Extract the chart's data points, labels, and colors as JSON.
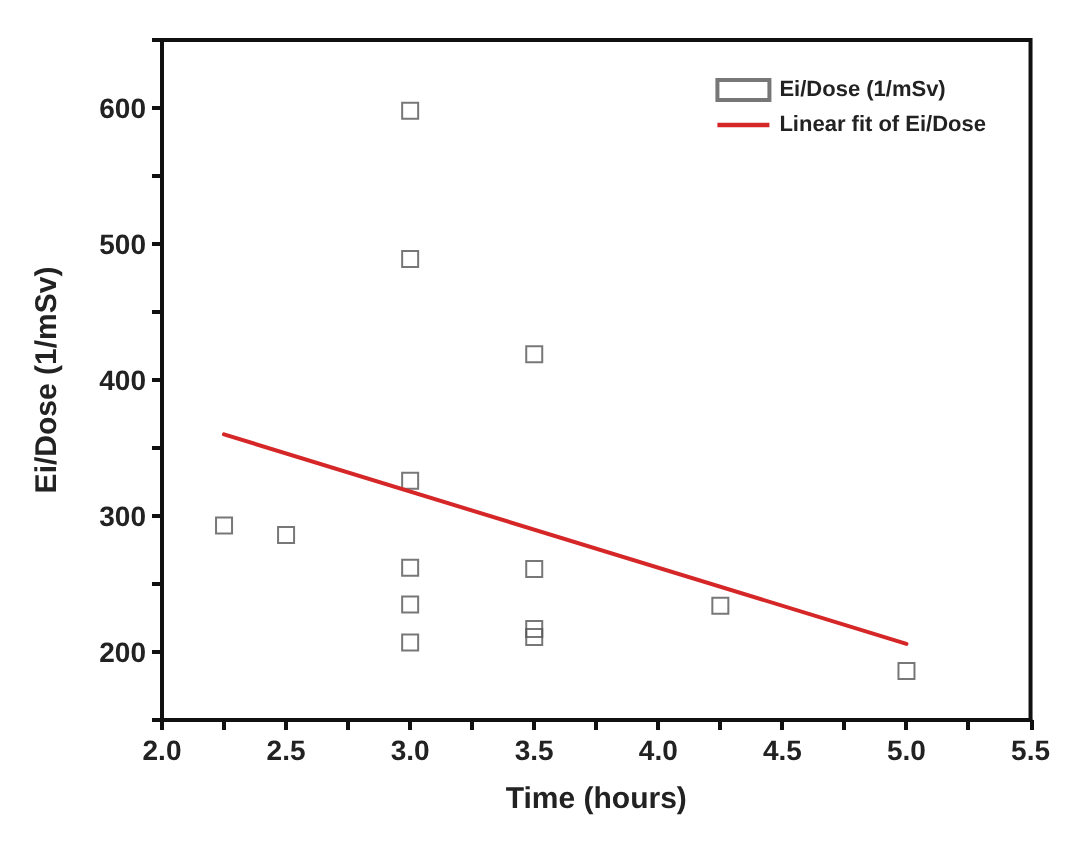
{
  "chart_data": {
    "type": "scatter",
    "xlabel": "Time (hours)",
    "ylabel": "Ei/Dose (1/mSv)",
    "xlim": [
      2,
      5.5
    ],
    "xticks": [
      {
        "value": 2.25,
        "label": null
      },
      {
        "value": 2.0,
        "label": "2.0"
      },
      {
        "value": 2.5,
        "label": "2.5"
      },
      {
        "value": 2.75,
        "label": null
      },
      {
        "value": 3,
        "label": "3.0"
      },
      {
        "value": 3.25,
        "label": null
      },
      3.5,
      {
        "value": 3.75,
        "label": null
      },
      {
        "value": 4,
        "label": "4.0"
      },
      {
        "value": 4.25,
        "label": null
      },
      4.5,
      {
        "value": 4.75,
        "label": null
      },
      {
        "value": 5,
        "label": "5.0"
      },
      {
        "value": 5.25,
        "label": null
      },
      5.5
    ],
    "ylim": [
      150,
      650
    ],
    "yticks": [
      {
        "value": 150,
        "label": null
      },
      200,
      {
        "value": 250,
        "label": null
      },
      300,
      {
        "value": 350,
        "label": null
      },
      400,
      {
        "value": 450,
        "label": null
      },
      500,
      {
        "value": 550,
        "label": null
      },
      600,
      {
        "value": 650,
        "label": null
      }
    ],
    "grid": false,
    "legend": "top right",
    "marker": "square",
    "series": [
      {
        "name": "Ei/Dose (1/mSv)",
        "color": "#555555",
        "x": [
          2.25,
          2.5,
          3,
          3,
          3,
          3,
          3,
          3,
          3.5,
          3.5,
          3.5,
          3.5,
          4.25,
          5
        ],
        "values": [
          293,
          286,
          598,
          489,
          326,
          262,
          235,
          207,
          419,
          261,
          217,
          211,
          234,
          186
        ]
      },
      {
        "name": "Linear fit of Ei/Dose",
        "type": "line",
        "color": "#d62728",
        "marker": "none",
        "line_style": "solid",
        "x": [
          2.25,
          5
        ],
        "values": [
          360,
          206
        ]
      }
    ]
  }
}
